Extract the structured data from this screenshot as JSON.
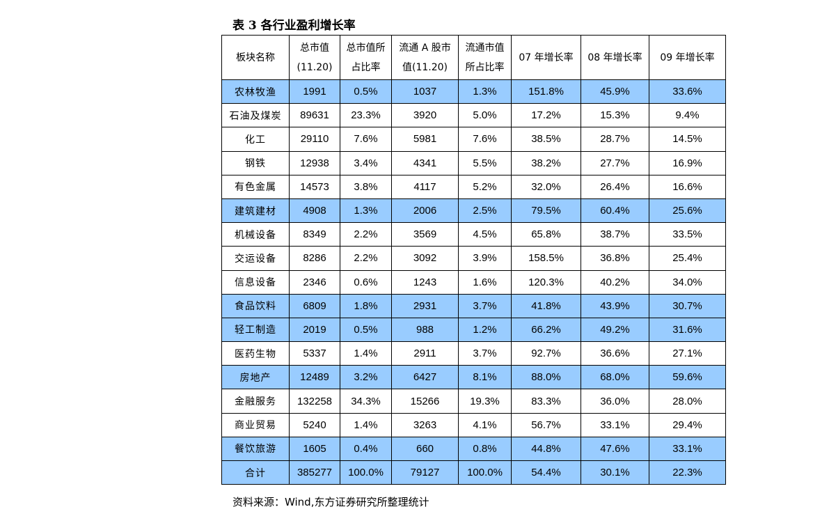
{
  "title": "表 3 各行业盈利增长率",
  "headers": [
    [
      "板块名称"
    ],
    [
      "总市值",
      "(11.20)"
    ],
    [
      "总市值所",
      "占比率"
    ],
    [
      "流通 A 股市",
      "值(11.20)"
    ],
    [
      "流通市值",
      "所占比率"
    ],
    [
      "07 年增长率"
    ],
    [
      "08 年增长率"
    ],
    [
      "09 年增长率"
    ]
  ],
  "rows": [
    {
      "highlight": true,
      "cells": [
        "农林牧渔",
        "1991",
        "0.5%",
        "1037",
        "1.3%",
        "151.8%",
        "45.9%",
        "33.6%"
      ]
    },
    {
      "highlight": false,
      "cells": [
        "石油及煤炭",
        "89631",
        "23.3%",
        "3920",
        "5.0%",
        "17.2%",
        "15.3%",
        "9.4%"
      ]
    },
    {
      "highlight": false,
      "cells": [
        "化工",
        "29110",
        "7.6%",
        "5981",
        "7.6%",
        "38.5%",
        "28.7%",
        "14.5%"
      ]
    },
    {
      "highlight": false,
      "cells": [
        "钢铁",
        "12938",
        "3.4%",
        "4341",
        "5.5%",
        "38.2%",
        "27.7%",
        "16.9%"
      ]
    },
    {
      "highlight": false,
      "cells": [
        "有色金属",
        "14573",
        "3.8%",
        "4117",
        "5.2%",
        "32.0%",
        "26.4%",
        "16.6%"
      ]
    },
    {
      "highlight": true,
      "cells": [
        "建筑建材",
        "4908",
        "1.3%",
        "2006",
        "2.5%",
        "79.5%",
        "60.4%",
        "25.6%"
      ]
    },
    {
      "highlight": false,
      "cells": [
        "机械设备",
        "8349",
        "2.2%",
        "3569",
        "4.5%",
        "65.8%",
        "38.7%",
        "33.5%"
      ]
    },
    {
      "highlight": false,
      "cells": [
        "交运设备",
        "8286",
        "2.2%",
        "3092",
        "3.9%",
        "158.5%",
        "36.8%",
        "25.4%"
      ]
    },
    {
      "highlight": false,
      "cells": [
        "信息设备",
        "2346",
        "0.6%",
        "1243",
        "1.6%",
        "120.3%",
        "40.2%",
        "34.0%"
      ]
    },
    {
      "highlight": true,
      "cells": [
        "食品饮料",
        "6809",
        "1.8%",
        "2931",
        "3.7%",
        "41.8%",
        "43.9%",
        "30.7%"
      ]
    },
    {
      "highlight": true,
      "cells": [
        "轻工制造",
        "2019",
        "0.5%",
        "988",
        "1.2%",
        "66.2%",
        "49.2%",
        "31.6%"
      ]
    },
    {
      "highlight": false,
      "cells": [
        "医药生物",
        "5337",
        "1.4%",
        "2911",
        "3.7%",
        "92.7%",
        "36.6%",
        "27.1%"
      ]
    },
    {
      "highlight": true,
      "cells": [
        "房地产",
        "12489",
        "3.2%",
        "6427",
        "8.1%",
        "88.0%",
        "68.0%",
        "59.6%"
      ]
    },
    {
      "highlight": false,
      "cells": [
        "金融服务",
        "132258",
        "34.3%",
        "15266",
        "19.3%",
        "83.3%",
        "36.0%",
        "28.0%"
      ]
    },
    {
      "highlight": false,
      "cells": [
        "商业贸易",
        "5240",
        "1.4%",
        "3263",
        "4.1%",
        "56.7%",
        "33.1%",
        "29.4%"
      ]
    },
    {
      "highlight": true,
      "cells": [
        "餐饮旅游",
        "1605",
        "0.4%",
        "660",
        "0.8%",
        "44.8%",
        "47.6%",
        "33.1%"
      ]
    },
    {
      "highlight": true,
      "cells": [
        "合计",
        "385277",
        "100.0%",
        "79127",
        "100.0%",
        "54.4%",
        "30.1%",
        "22.3%"
      ]
    }
  ],
  "source": "资料来源：Wind,东方证券研究所整理统计",
  "colors": {
    "highlight": "#99ccff",
    "border": "#000000"
  }
}
